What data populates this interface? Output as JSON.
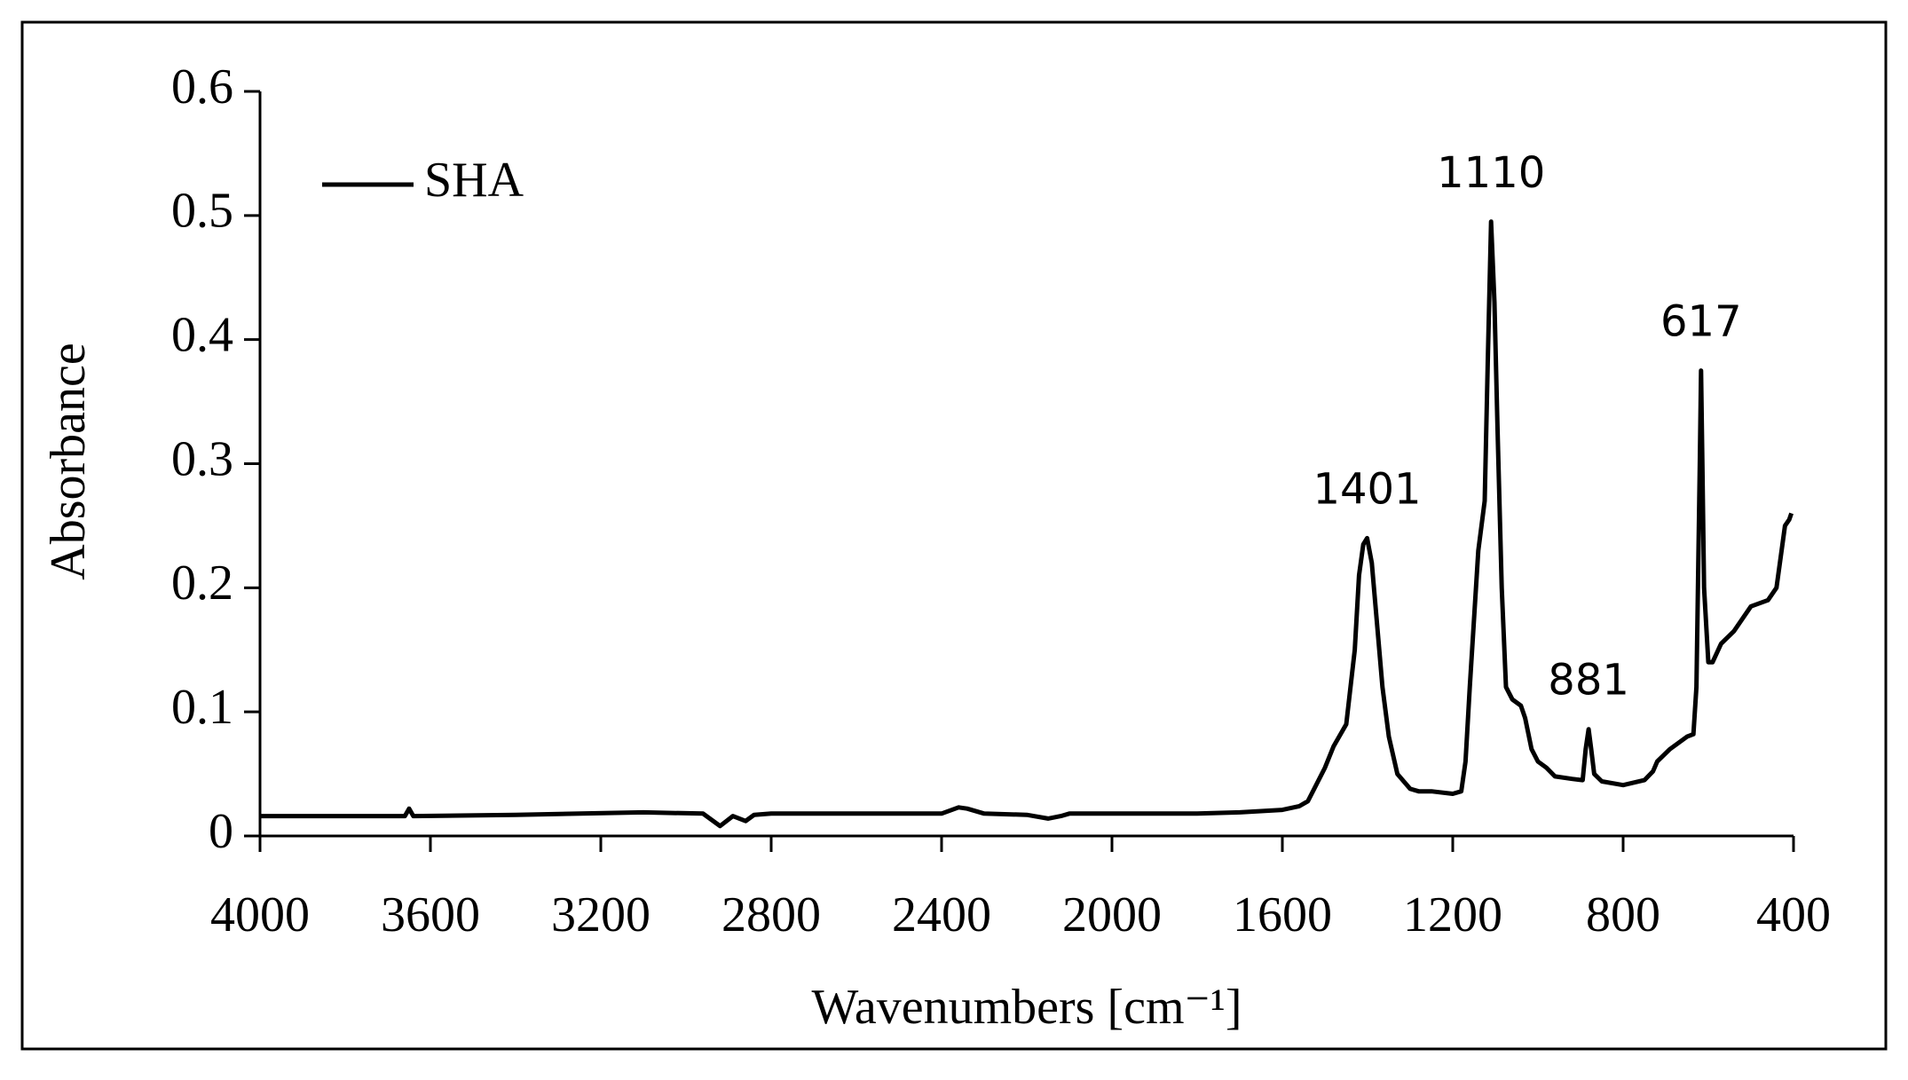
{
  "chart_data": {
    "type": "line",
    "x_label": "Wavenumbers [cm⁻¹]",
    "y_label": "Absorbance",
    "xlim": [
      4000,
      400
    ],
    "xticks": [
      4000,
      3600,
      3200,
      2800,
      2400,
      2000,
      1600,
      1200,
      800,
      400
    ],
    "ylim": [
      0,
      0.6
    ],
    "yticks": [
      0,
      0.1,
      0.2,
      0.3,
      0.4,
      0.5,
      0.6
    ],
    "legend": "upper left",
    "series": [
      {
        "name": "SHA",
        "color": "#000000",
        "x": [
          4000,
          3800,
          3660,
          3650,
          3640,
          3400,
          3100,
          2960,
          2920,
          2890,
          2860,
          2840,
          2800,
          2600,
          2400,
          2360,
          2340,
          2300,
          2200,
          2150,
          2120,
          2100,
          2000,
          1800,
          1700,
          1600,
          1560,
          1540,
          1500,
          1480,
          1450,
          1430,
          1420,
          1410,
          1401,
          1390,
          1380,
          1365,
          1350,
          1330,
          1300,
          1280,
          1250,
          1200,
          1180,
          1170,
          1160,
          1140,
          1125,
          1118,
          1110,
          1102,
          1095,
          1085,
          1075,
          1060,
          1040,
          1030,
          1015,
          1000,
          980,
          960,
          920,
          895,
          888,
          881,
          875,
          868,
          850,
          800,
          750,
          730,
          720,
          690,
          650,
          635,
          628,
          620,
          617,
          614,
          610,
          600,
          590,
          570,
          540,
          500,
          460,
          440,
          420,
          410,
          405
        ],
        "values": [
          0.016,
          0.016,
          0.016,
          0.022,
          0.016,
          0.017,
          0.019,
          0.018,
          0.008,
          0.016,
          0.012,
          0.017,
          0.018,
          0.018,
          0.018,
          0.023,
          0.022,
          0.018,
          0.017,
          0.014,
          0.016,
          0.018,
          0.018,
          0.018,
          0.019,
          0.021,
          0.024,
          0.028,
          0.055,
          0.072,
          0.09,
          0.15,
          0.21,
          0.235,
          0.24,
          0.22,
          0.18,
          0.12,
          0.08,
          0.05,
          0.038,
          0.036,
          0.036,
          0.034,
          0.036,
          0.06,
          0.12,
          0.23,
          0.27,
          0.38,
          0.495,
          0.43,
          0.33,
          0.2,
          0.12,
          0.11,
          0.105,
          0.095,
          0.07,
          0.06,
          0.055,
          0.048,
          0.046,
          0.045,
          0.07,
          0.086,
          0.07,
          0.05,
          0.044,
          0.041,
          0.045,
          0.052,
          0.06,
          0.07,
          0.08,
          0.082,
          0.12,
          0.3,
          0.375,
          0.3,
          0.2,
          0.14,
          0.14,
          0.155,
          0.165,
          0.185,
          0.19,
          0.2,
          0.25,
          0.255,
          0.26
        ]
      }
    ],
    "annotations": [
      {
        "x": 1401
      },
      {
        "x": 1110
      },
      {
        "x": 881
      },
      {
        "x": 617
      }
    ]
  }
}
